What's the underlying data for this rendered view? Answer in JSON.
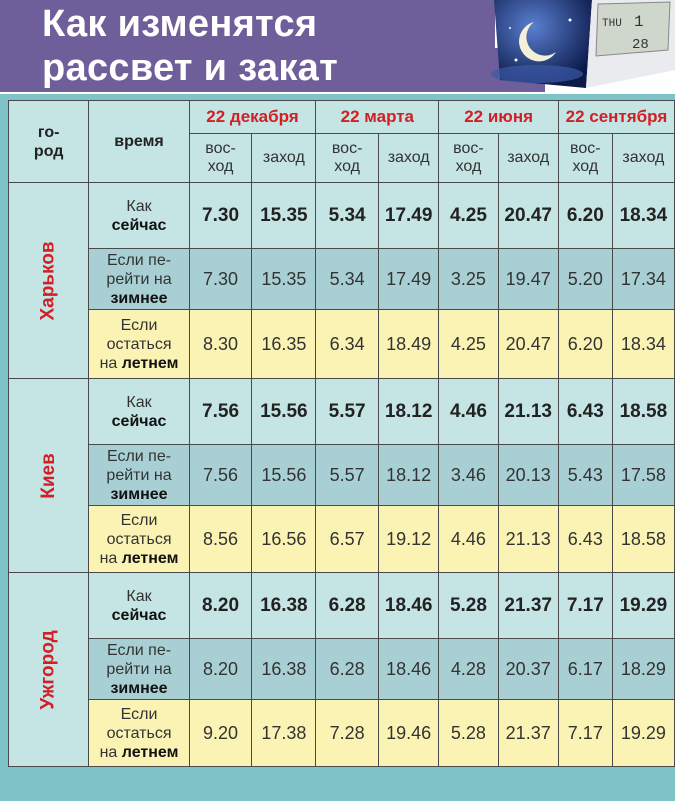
{
  "title": {
    "line1": "Как изменятся",
    "line2": "рассвет и закат"
  },
  "header": {
    "city_label_1": "го-",
    "city_label_2": "род",
    "time_label": "время",
    "dates": [
      "22 декабря",
      "22 марта",
      "22 июня",
      "22 сентября"
    ],
    "rise_1": "вос-",
    "rise_2": "ход",
    "set": "заход"
  },
  "row_labels": {
    "now_1": "Как",
    "now_2": "сейчас",
    "win_1": "Если пе-",
    "win_2": "рейти на",
    "win_3": "зимнее",
    "sum_1": "Если",
    "sum_2": "остаться",
    "sum_3": "на",
    "sum_3b": "летнем"
  },
  "cities": [
    {
      "name": "Харьков",
      "now": [
        "7.30",
        "15.35",
        "5.34",
        "17.49",
        "4.25",
        "20.47",
        "6.20",
        "18.34"
      ],
      "win": [
        "7.30",
        "15.35",
        "5.34",
        "17.49",
        "3.25",
        "19.47",
        "5.20",
        "17.34"
      ],
      "sum": [
        "8.30",
        "16.35",
        "6.34",
        "18.49",
        "4.25",
        "20.47",
        "6.20",
        "18.34"
      ]
    },
    {
      "name": "Киев",
      "now": [
        "7.56",
        "15.56",
        "5.57",
        "18.12",
        "4.46",
        "21.13",
        "6.43",
        "18.58"
      ],
      "win": [
        "7.56",
        "15.56",
        "5.57",
        "18.12",
        "3.46",
        "20.13",
        "5.43",
        "17.58"
      ],
      "sum": [
        "8.56",
        "16.56",
        "6.57",
        "19.12",
        "4.46",
        "21.13",
        "6.43",
        "18.58"
      ]
    },
    {
      "name": "Ужгород",
      "now": [
        "8.20",
        "16.38",
        "6.28",
        "18.46",
        "5.28",
        "21.37",
        "7.17",
        "19.29"
      ],
      "win": [
        "8.20",
        "16.38",
        "6.28",
        "18.46",
        "4.28",
        "20.37",
        "6.17",
        "18.29"
      ],
      "sum": [
        "9.20",
        "17.38",
        "7.28",
        "19.46",
        "5.28",
        "21.37",
        "7.17",
        "19.29"
      ]
    }
  ],
  "clock_display": {
    "day": "THU",
    "num1": "1",
    "num2": "28"
  },
  "colors": {
    "accent_red": "#d11f25",
    "title_band": "#6e5e9a",
    "teal": "#7ec3c8",
    "light": "#c5e4e4",
    "mid": "#a8d0d4",
    "yellow": "#fbf3b4"
  }
}
